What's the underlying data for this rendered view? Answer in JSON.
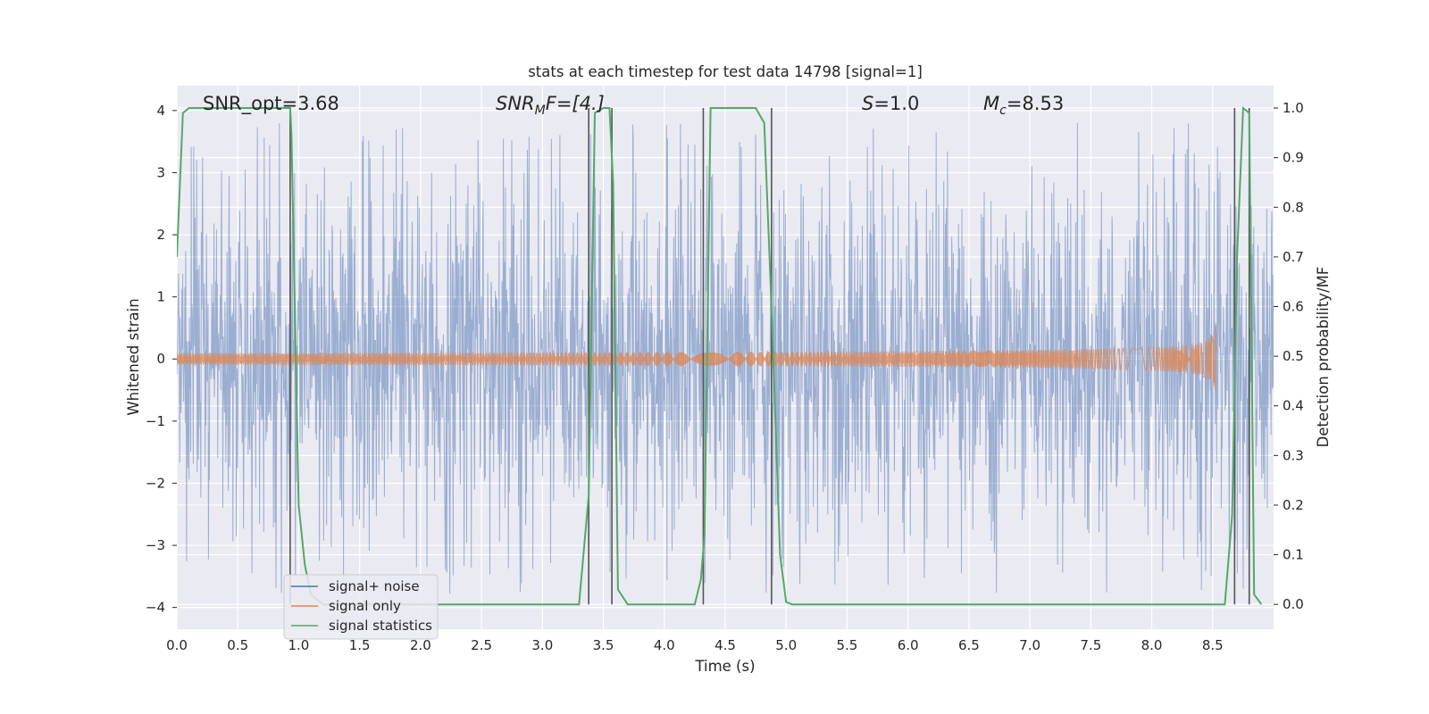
{
  "chart_data": {
    "type": "line",
    "title": "stats at each timestep for test data 14798 [signal=1]",
    "xlabel": "Time (s)",
    "ylabel": "Whitened strain",
    "y2label": "Detection probability/MF",
    "xlim": [
      0.0,
      9.0
    ],
    "ylim": [
      -4.35,
      4.4
    ],
    "y2lim": [
      -0.05,
      1.045
    ],
    "x_ticks": [
      "0.0",
      "0.5",
      "1.0",
      "1.5",
      "2.0",
      "2.5",
      "3.0",
      "3.5",
      "4.0",
      "4.5",
      "5.0",
      "5.5",
      "6.0",
      "6.5",
      "7.0",
      "7.5",
      "8.0",
      "8.5"
    ],
    "y_ticks": [
      "4",
      "3",
      "2",
      "1",
      "0",
      "−1",
      "−2",
      "−3",
      "−4"
    ],
    "y_tick_values": [
      4,
      3,
      2,
      1,
      0,
      -1,
      -2,
      -3,
      -4
    ],
    "y2_ticks": [
      "1.0",
      "0.9",
      "0.8",
      "0.7",
      "0.6",
      "0.5",
      "0.4",
      "0.3",
      "0.2",
      "0.1",
      "0.0"
    ],
    "y2_tick_values": [
      1.0,
      0.9,
      0.8,
      0.7,
      0.6,
      0.5,
      0.4,
      0.3,
      0.2,
      0.1,
      0.0
    ],
    "grid": true,
    "legend_position": "lower-left",
    "annotations": {
      "snr_opt": "SNR_opt=3.68",
      "snr_mf_base": "SNR",
      "snr_mf_sub": "M",
      "snr_mf_rest": "F=[4.]",
      "s_italic": "S",
      "s_rest": "=1.0",
      "mc_base": "M",
      "mc_sub": "c",
      "mc_rest": "=8.53"
    },
    "series": [
      {
        "name": "signal+ noise",
        "color": "#4c72b0",
        "kind": "noise",
        "amplitude_envelope": 3.8,
        "x_range": [
          0.0,
          9.0
        ]
      },
      {
        "name": "signal only",
        "color": "#dd8452",
        "kind": "chirp",
        "merger_time": 8.53,
        "peak_amplitude": 0.65
      },
      {
        "name": "signal statistics",
        "color": "#55a868",
        "x": [
          0.0,
          0.05,
          0.1,
          0.2,
          0.5,
          0.93,
          0.94,
          1.0,
          1.05,
          1.1,
          1.2,
          3.3,
          3.38,
          3.43,
          3.5,
          3.55,
          3.58,
          3.62,
          3.7,
          3.8,
          4.25,
          4.3,
          4.33,
          4.38,
          4.5,
          4.75,
          4.82,
          4.88,
          4.95,
          5.0,
          5.05,
          5.1,
          8.6,
          8.66,
          8.7,
          8.75,
          8.8,
          8.84,
          8.9
        ],
        "y": [
          0.7,
          0.99,
          1.0,
          1.0,
          1.0,
          1.0,
          0.95,
          0.2,
          0.08,
          0.02,
          0.0,
          0.0,
          0.22,
          0.99,
          1.0,
          1.0,
          0.85,
          0.03,
          0.0,
          0.0,
          0.0,
          0.05,
          0.14,
          1.0,
          1.0,
          1.0,
          0.97,
          0.6,
          0.1,
          0.005,
          0.0,
          0.0,
          0.0,
          0.18,
          0.7,
          1.0,
          0.99,
          0.02,
          0.0
        ]
      }
    ],
    "detection_markers": [
      0.93,
      3.38,
      3.57,
      4.32,
      4.88,
      8.68,
      8.8
    ]
  }
}
